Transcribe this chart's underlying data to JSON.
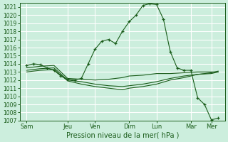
{
  "title": "",
  "xlabel": "Pression niveau de la mer( hPa )",
  "bg_color": "#cceedd",
  "grid_color": "#ffffff",
  "line_color": "#1a5c1a",
  "ylim": [
    1007,
    1021.5
  ],
  "yticks": [
    1007,
    1008,
    1009,
    1010,
    1011,
    1012,
    1013,
    1014,
    1015,
    1016,
    1017,
    1018,
    1019,
    1020,
    1021
  ],
  "day_labels": [
    "Sam",
    "Jeu",
    "Ven",
    "Dim",
    "Lun",
    "Mar",
    "Mer"
  ],
  "day_positions": [
    0,
    24,
    40,
    60,
    76,
    96,
    108
  ],
  "xlim": [
    -4,
    116
  ],
  "series": [
    {
      "x": [
        0,
        4,
        8,
        12,
        16,
        20,
        24,
        28,
        32,
        36,
        40,
        44,
        48,
        52,
        56,
        60,
        64,
        68,
        72,
        76,
        80,
        84,
        88,
        92,
        96,
        100,
        104,
        108,
        112
      ],
      "y": [
        1013.8,
        1014.0,
        1013.9,
        1013.5,
        1013.2,
        1012.5,
        1012.1,
        1012.0,
        1012.2,
        1014.0,
        1015.8,
        1016.8,
        1017.0,
        1016.5,
        1018.0,
        1019.2,
        1020.0,
        1021.2,
        1021.4,
        1021.3,
        1019.5,
        1015.5,
        1013.5,
        1013.2,
        1013.2,
        1009.8,
        1009.0,
        1007.1,
        1007.3
      ],
      "marker": "+"
    },
    {
      "x": [
        0,
        8,
        16,
        24,
        32,
        40,
        48,
        56,
        60,
        68,
        76,
        84,
        92,
        100,
        108,
        112
      ],
      "y": [
        1013.5,
        1013.7,
        1013.8,
        1012.2,
        1012.1,
        1012.0,
        1012.1,
        1012.3,
        1012.5,
        1012.6,
        1012.8,
        1012.8,
        1012.9,
        1013.0,
        1013.0,
        1013.0
      ],
      "marker": null
    },
    {
      "x": [
        0,
        8,
        16,
        24,
        32,
        40,
        48,
        56,
        60,
        68,
        76,
        84,
        92,
        100,
        108,
        112
      ],
      "y": [
        1013.2,
        1013.4,
        1013.5,
        1012.0,
        1011.8,
        1011.5,
        1011.3,
        1011.2,
        1011.3,
        1011.5,
        1011.8,
        1012.2,
        1012.5,
        1012.7,
        1012.8,
        1013.0
      ],
      "marker": null
    },
    {
      "x": [
        0,
        8,
        16,
        24,
        32,
        40,
        48,
        56,
        60,
        68,
        76,
        84,
        92,
        100,
        108,
        112
      ],
      "y": [
        1013.0,
        1013.2,
        1013.3,
        1011.9,
        1011.5,
        1011.2,
        1011.0,
        1010.8,
        1011.0,
        1011.2,
        1011.5,
        1012.0,
        1012.3,
        1012.7,
        1012.9,
        1013.1
      ],
      "marker": null
    }
  ]
}
